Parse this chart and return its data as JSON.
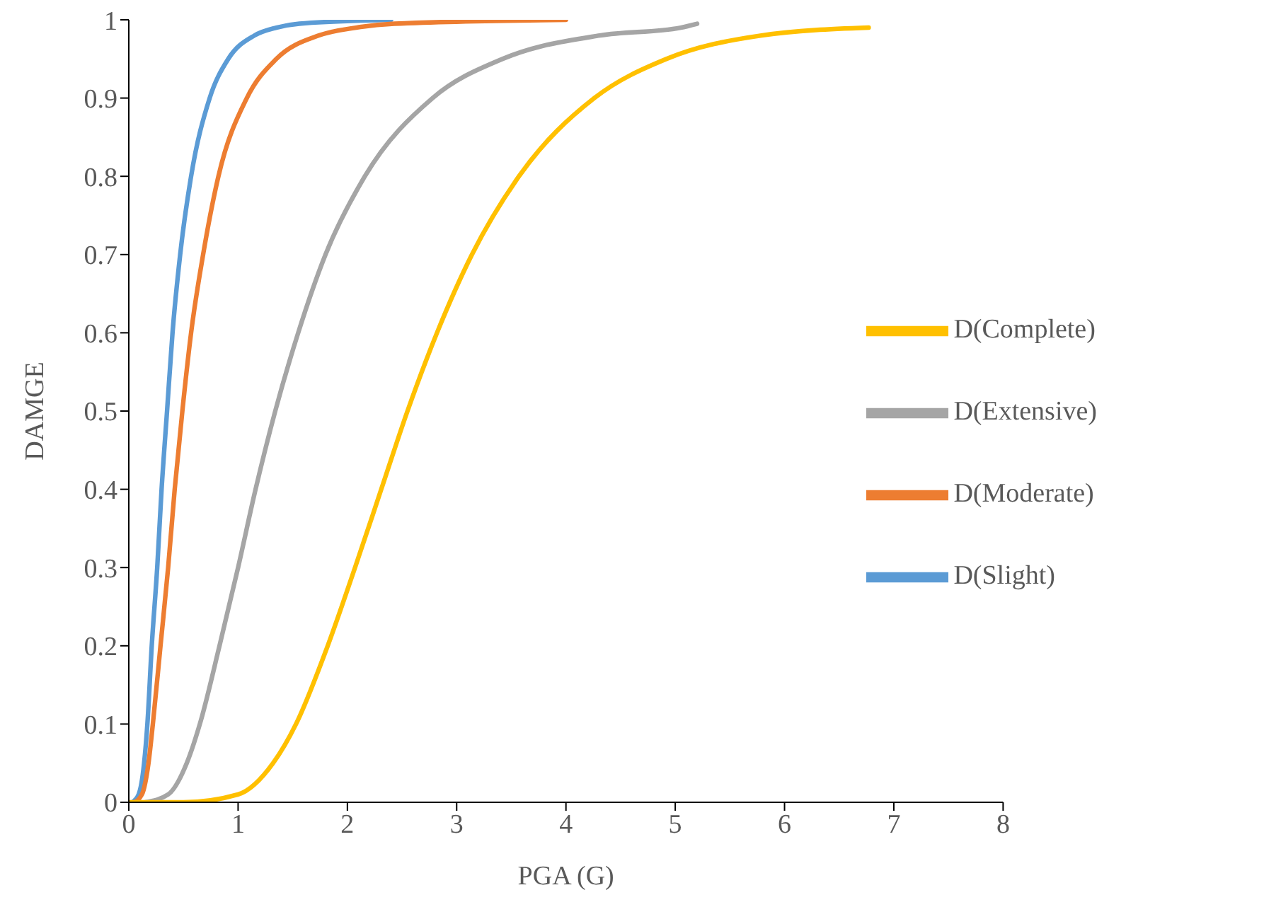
{
  "chart_data": {
    "type": "line",
    "xlabel": "PGA (G)",
    "ylabel": "DAMGE",
    "xlim": [
      0,
      8
    ],
    "xticks": [
      0,
      1,
      2,
      3,
      4,
      5,
      6,
      7,
      8
    ],
    "ylim": [
      0,
      1
    ],
    "yticks": [
      0,
      0.1,
      0.2,
      0.3,
      0.4,
      0.5,
      0.6,
      0.7,
      0.8,
      0.9,
      1
    ],
    "grid": false,
    "legend": "right",
    "marker": "none",
    "line_style": "solid",
    "series": [
      {
        "name": "D(Slight)",
        "color": "#5b9bd5",
        "x": [
          0.03,
          0.09,
          0.14,
          0.17,
          0.21,
          0.26,
          0.3,
          0.35,
          0.4,
          0.47,
          0.57,
          0.74,
          0.91,
          1.15,
          1.35,
          1.56,
          2.4
        ],
        "values": [
          0,
          0.01,
          0.05,
          0.1,
          0.2,
          0.3,
          0.4,
          0.5,
          0.6,
          0.7,
          0.8,
          0.9,
          0.95,
          0.98,
          0.99,
          0.995,
          1
        ]
      },
      {
        "name": "D(Moderate)",
        "color": "#ed7d31",
        "x": [
          0.05,
          0.12,
          0.18,
          0.22,
          0.29,
          0.36,
          0.42,
          0.49,
          0.57,
          0.68,
          0.82,
          1.08,
          1.35,
          1.74,
          2.08,
          2.43,
          4.0
        ],
        "values": [
          0,
          0.01,
          0.05,
          0.1,
          0.2,
          0.3,
          0.4,
          0.5,
          0.6,
          0.7,
          0.8,
          0.9,
          0.95,
          0.98,
          0.99,
          0.995,
          1
        ]
      },
      {
        "name": "D(Extensive)",
        "color": "#a5a5a5",
        "x": [
          0.15,
          0.36,
          0.53,
          0.65,
          0.83,
          1.0,
          1.16,
          1.34,
          1.55,
          1.8,
          2.16,
          2.78,
          3.42,
          4.31,
          5.05,
          5.2
        ],
        "values": [
          0,
          0.01,
          0.05,
          0.1,
          0.2,
          0.3,
          0.4,
          0.5,
          0.6,
          0.7,
          0.8,
          0.9,
          0.95,
          0.98,
          0.99,
          0.995
        ]
      },
      {
        "name": "D(Complete)",
        "color": "#ffc000",
        "x": [
          0,
          0.5,
          1.0,
          1.32,
          1.53,
          1.82,
          2.07,
          2.31,
          2.55,
          2.82,
          3.14,
          3.57,
          4.26,
          4.92,
          5.79,
          6.77
        ],
        "values": [
          0,
          0,
          0.01,
          0.05,
          0.1,
          0.2,
          0.3,
          0.4,
          0.5,
          0.6,
          0.7,
          0.8,
          0.9,
          0.95,
          0.98,
          0.99
        ]
      }
    ]
  }
}
